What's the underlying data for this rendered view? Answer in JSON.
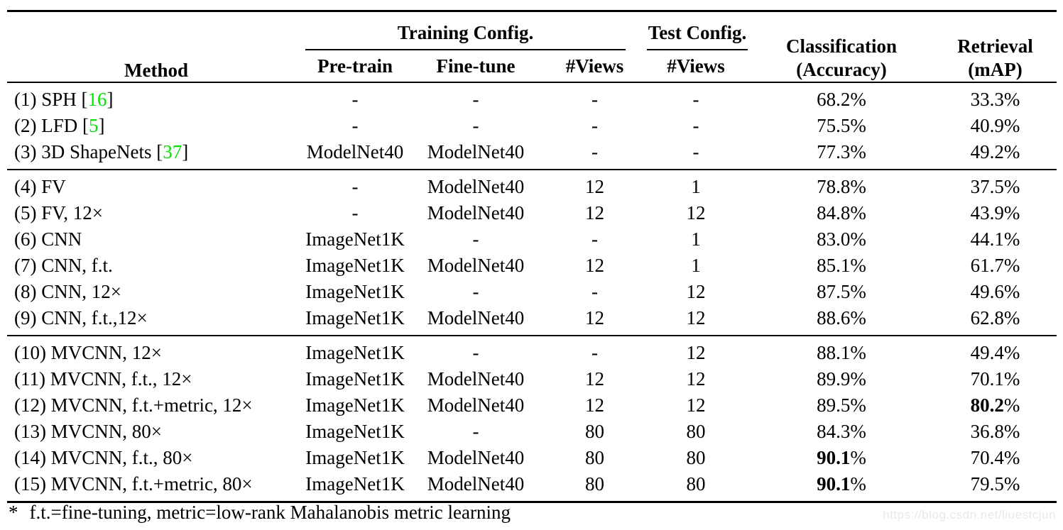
{
  "header": {
    "method": "Method",
    "training_config": "Training Config.",
    "test_config": "Test Config.",
    "pre_train": "Pre-train",
    "fine_tune": "Fine-tune",
    "views_train": "#Views",
    "views_test": "#Views",
    "classification_line1": "Classification",
    "classification_line2": "(Accuracy)",
    "retrieval_line1": "Retrieval",
    "retrieval_line2": "(mAP)"
  },
  "groups": [
    {
      "rows": [
        {
          "method": "(1) SPH",
          "cite": "16",
          "pre_train": "-",
          "fine_tune": "-",
          "views_train": "-",
          "views_test": "-",
          "accuracy": "68.2%",
          "accuracy_bold": false,
          "map": "33.3%",
          "map_bold": false
        },
        {
          "method": "(2) LFD",
          "cite": "5",
          "pre_train": "-",
          "fine_tune": "-",
          "views_train": "-",
          "views_test": "-",
          "accuracy": "75.5%",
          "accuracy_bold": false,
          "map": "40.9%",
          "map_bold": false
        },
        {
          "method": "(3) 3D ShapeNets",
          "cite": "37",
          "pre_train": "ModelNet40",
          "fine_tune": "ModelNet40",
          "views_train": "-",
          "views_test": "-",
          "accuracy": "77.3%",
          "accuracy_bold": false,
          "map": "49.2%",
          "map_bold": false
        }
      ]
    },
    {
      "rows": [
        {
          "method": "(4) FV",
          "cite": null,
          "pre_train": "-",
          "fine_tune": "ModelNet40",
          "views_train": "12",
          "views_test": "1",
          "accuracy": "78.8%",
          "accuracy_bold": false,
          "map": "37.5%",
          "map_bold": false
        },
        {
          "method": "(5) FV, 12×",
          "cite": null,
          "pre_train": "-",
          "fine_tune": "ModelNet40",
          "views_train": "12",
          "views_test": "12",
          "accuracy": "84.8%",
          "accuracy_bold": false,
          "map": "43.9%",
          "map_bold": false
        },
        {
          "method": "(6) CNN",
          "cite": null,
          "pre_train": "ImageNet1K",
          "fine_tune": "-",
          "views_train": "-",
          "views_test": "1",
          "accuracy": "83.0%",
          "accuracy_bold": false,
          "map": "44.1%",
          "map_bold": false
        },
        {
          "method": "(7) CNN, f.t.",
          "cite": null,
          "pre_train": "ImageNet1K",
          "fine_tune": "ModelNet40",
          "views_train": "12",
          "views_test": "1",
          "accuracy": "85.1%",
          "accuracy_bold": false,
          "map": "61.7%",
          "map_bold": false
        },
        {
          "method": "(8) CNN, 12×",
          "cite": null,
          "pre_train": "ImageNet1K",
          "fine_tune": "-",
          "views_train": "-",
          "views_test": "12",
          "accuracy": "87.5%",
          "accuracy_bold": false,
          "map": "49.6%",
          "map_bold": false
        },
        {
          "method": "(9) CNN, f.t.,12×",
          "cite": null,
          "pre_train": "ImageNet1K",
          "fine_tune": "ModelNet40",
          "views_train": "12",
          "views_test": "12",
          "accuracy": "88.6%",
          "accuracy_bold": false,
          "map": "62.8%",
          "map_bold": false
        }
      ]
    },
    {
      "rows": [
        {
          "method": "(10) MVCNN, 12×",
          "cite": null,
          "pre_train": "ImageNet1K",
          "fine_tune": "-",
          "views_train": "-",
          "views_test": "12",
          "accuracy": "88.1%",
          "accuracy_bold": false,
          "map": "49.4%",
          "map_bold": false
        },
        {
          "method": "(11) MVCNN, f.t., 12×",
          "cite": null,
          "pre_train": "ImageNet1K",
          "fine_tune": "ModelNet40",
          "views_train": "12",
          "views_test": "12",
          "accuracy": "89.9%",
          "accuracy_bold": false,
          "map": "70.1%",
          "map_bold": false
        },
        {
          "method": "(12) MVCNN, f.t.+metric, 12×",
          "cite": null,
          "pre_train": "ImageNet1K",
          "fine_tune": "ModelNet40",
          "views_train": "12",
          "views_test": "12",
          "accuracy": "89.5%",
          "accuracy_bold": false,
          "map": "80.2%",
          "map_bold": true
        },
        {
          "method": "(13) MVCNN, 80×",
          "cite": null,
          "pre_train": "ImageNet1K",
          "fine_tune": "-",
          "views_train": "80",
          "views_test": "80",
          "accuracy": "84.3%",
          "accuracy_bold": false,
          "map": "36.8%",
          "map_bold": false
        },
        {
          "method": "(14) MVCNN, f.t., 80×",
          "cite": null,
          "pre_train": "ImageNet1K",
          "fine_tune": "ModelNet40",
          "views_train": "80",
          "views_test": "80",
          "accuracy": "90.1%",
          "accuracy_bold": true,
          "map": "70.4%",
          "map_bold": false
        },
        {
          "method": "(15) MVCNN, f.t.+metric, 80×",
          "cite": null,
          "pre_train": "ImageNet1K",
          "fine_tune": "ModelNet40",
          "views_train": "80",
          "views_test": "80",
          "accuracy": "90.1%",
          "accuracy_bold": true,
          "map": "79.5%",
          "map_bold": false
        }
      ]
    }
  ],
  "footnote": {
    "marker": "*",
    "text": "f.t.=fine-tuning, metric=low-rank Mahalanobis metric learning"
  },
  "watermark": "https://blog.csdn.net/liuestcjun",
  "colors": {
    "citation_green": "#00e400",
    "watermark_gray": "#e9e9e9",
    "text": "#000000"
  }
}
